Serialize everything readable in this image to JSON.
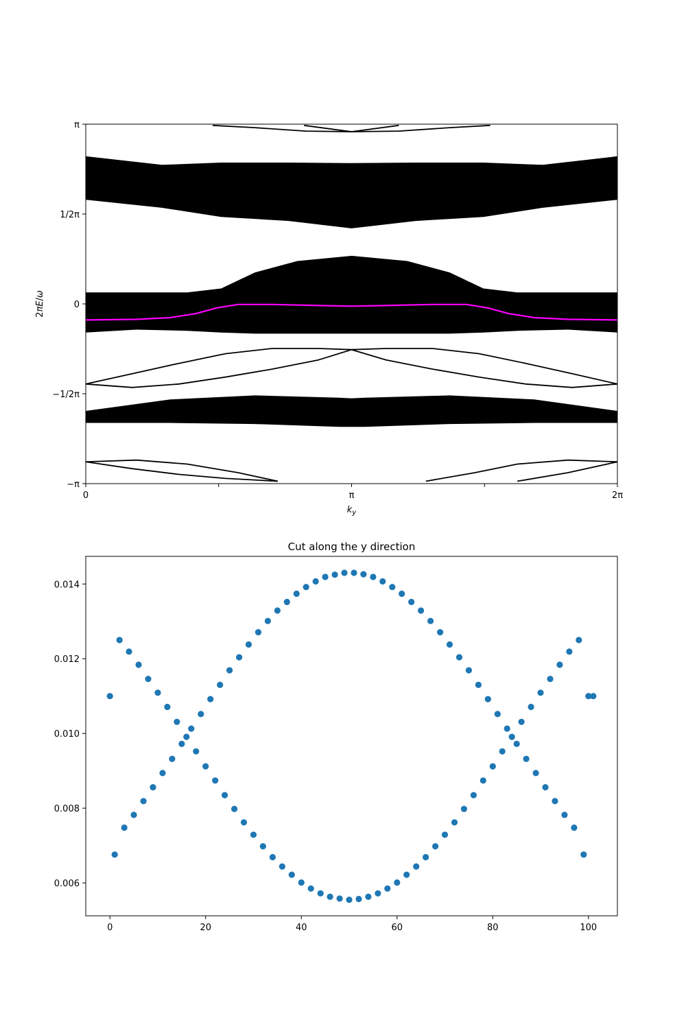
{
  "chart_data": [
    {
      "type": "line",
      "xlabel": "k_y",
      "ylabel": "2πE/ω",
      "xlim": [
        0,
        6.2832
      ],
      "ylim": [
        -3.1416,
        3.1416
      ],
      "x_ticks": [
        {
          "value": 0,
          "label": "0"
        },
        {
          "value": 1.5708,
          "label": ""
        },
        {
          "value": 3.1416,
          "label": "π"
        },
        {
          "value": 4.7124,
          "label": ""
        },
        {
          "value": 6.2832,
          "label": "2π"
        }
      ],
      "y_ticks": [
        {
          "value": -3.1416,
          "label": "−π"
        },
        {
          "value": -1.5708,
          "label": "−1/2π"
        },
        {
          "value": 0,
          "label": "0"
        },
        {
          "value": 1.5708,
          "label": "1/2π"
        },
        {
          "value": 3.1416,
          "label": "π"
        }
      ],
      "bands": [
        {
          "x": [
            0,
            0.9,
            1.6,
            2.4,
            3.1416,
            3.9,
            4.7,
            5.4,
            6.2832
          ],
          "lower": [
            1.82,
            1.68,
            1.52,
            1.45,
            1.32,
            1.45,
            1.52,
            1.68,
            1.82
          ],
          "upper": [
            2.58,
            2.43,
            2.47,
            2.47,
            2.46,
            2.47,
            2.47,
            2.43,
            2.58
          ]
        },
        {
          "x": [
            0,
            0.6,
            1.2,
            1.6,
            2.0,
            2.5,
            3.1416,
            3.8,
            4.3,
            4.7,
            5.1,
            5.7,
            6.2832
          ],
          "lower": [
            -0.5,
            -0.45,
            -0.47,
            -0.5,
            -0.52,
            -0.52,
            -0.52,
            -0.52,
            -0.52,
            -0.5,
            -0.47,
            -0.45,
            -0.5
          ],
          "upper": [
            0.2,
            0.2,
            0.2,
            0.27,
            0.55,
            0.75,
            0.84,
            0.75,
            0.55,
            0.27,
            0.2,
            0.2,
            0.2
          ]
        },
        {
          "x": [
            0,
            1.0,
            2.0,
            3.0,
            3.1416,
            3.3,
            4.3,
            5.3,
            6.2832
          ],
          "lower": [
            -2.08,
            -2.08,
            -2.1,
            -2.15,
            -2.15,
            -2.15,
            -2.1,
            -2.08,
            -2.08
          ],
          "upper": [
            -1.87,
            -1.67,
            -1.6,
            -1.64,
            -1.65,
            -1.64,
            -1.6,
            -1.67,
            -1.87
          ]
        }
      ],
      "series": [
        {
          "color": "#000000",
          "x": [
            0,
            0.55,
            1.1,
            1.65,
            2.2,
            2.75,
            3.1416,
            3.55,
            4.1,
            4.65,
            5.2,
            5.75,
            6.2832
          ],
          "y": [
            -1.4,
            -1.46,
            -1.4,
            -1.28,
            -1.14,
            -0.98,
            -0.8,
            -0.78,
            -0.78,
            -0.87,
            -1.04,
            -1.22,
            -1.4
          ]
        },
        {
          "color": "#000000",
          "x": [
            0,
            0.55,
            1.1,
            1.65,
            2.2,
            2.75,
            3.1416,
            3.55,
            4.1,
            4.65,
            5.2,
            5.75,
            6.2832
          ],
          "y": [
            -1.4,
            -1.22,
            -1.04,
            -0.87,
            -0.78,
            -0.78,
            -0.8,
            -0.98,
            -1.14,
            -1.28,
            -1.4,
            -1.46,
            -1.4
          ]
        },
        {
          "color": "#000000",
          "x": [
            1.5,
            2.0,
            2.6,
            3.1416,
            3.7
          ],
          "y": [
            3.12,
            3.08,
            3.02,
            3.01,
            3.12
          ]
        },
        {
          "color": "#000000",
          "x": [
            2.58,
            3.1416,
            3.7,
            4.3,
            4.78
          ],
          "y": [
            3.12,
            3.01,
            3.02,
            3.08,
            3.12
          ]
        },
        {
          "color": "#000000",
          "x": [
            0,
            0.6,
            1.2,
            1.8,
            2.27
          ],
          "y": [
            -2.76,
            -2.73,
            -2.8,
            -2.95,
            -3.1
          ]
        },
        {
          "color": "#000000",
          "x": [
            0,
            0.55,
            1.1,
            1.65,
            2.27
          ],
          "y": [
            -2.76,
            -2.88,
            -2.98,
            -3.05,
            -3.1
          ]
        },
        {
          "color": "#000000",
          "x": [
            4.02,
            4.6,
            5.1,
            5.7,
            6.2832
          ],
          "y": [
            -3.1,
            -2.95,
            -2.8,
            -2.73,
            -2.76
          ]
        },
        {
          "color": "#000000",
          "x": [
            5.1,
            5.7,
            6.2832
          ],
          "y": [
            -3.1,
            -2.95,
            -2.76
          ]
        },
        {
          "color": "#ff00ff",
          "x": [
            0,
            0.6,
            1.0,
            1.3,
            1.55,
            1.8,
            2.2,
            2.8,
            3.1416,
            3.5,
            4.1,
            4.5,
            4.75,
            5.0,
            5.3,
            5.7,
            6.2832
          ],
          "y": [
            -0.28,
            -0.27,
            -0.24,
            -0.17,
            -0.07,
            -0.01,
            -0.01,
            -0.03,
            -0.04,
            -0.03,
            -0.01,
            -0.01,
            -0.07,
            -0.17,
            -0.24,
            -0.27,
            -0.28
          ]
        }
      ]
    },
    {
      "type": "scatter",
      "title": "Cut along the y direction",
      "xlim": [
        -5.05,
        106.05
      ],
      "ylim": [
        0.00512,
        0.01474
      ],
      "x_ticks": [
        0,
        20,
        40,
        60,
        80,
        100
      ],
      "y_ticks": [
        0.006,
        0.008,
        0.01,
        0.012,
        0.014
      ],
      "y_tick_labels": [
        "0.006",
        "0.008",
        "0.010",
        "0.012",
        "0.014"
      ],
      "x_tick_labels": [
        "0",
        "20",
        "40",
        "60",
        "80",
        "100"
      ],
      "color": "#1f77b4",
      "x": [
        0,
        1,
        2,
        3,
        4,
        5,
        6,
        7,
        8,
        9,
        10,
        11,
        12,
        13,
        14,
        15,
        16,
        17,
        18,
        19,
        20,
        21,
        22,
        23,
        24,
        25,
        26,
        27,
        28,
        29,
        30,
        31,
        32,
        33,
        34,
        35,
        36,
        37,
        38,
        39,
        40,
        41,
        42,
        43,
        44,
        45,
        46,
        47,
        48,
        49,
        50,
        51,
        52,
        53,
        54,
        55,
        56,
        57,
        58,
        59,
        60,
        61,
        62,
        63,
        64,
        65,
        66,
        67,
        68,
        69,
        70,
        71,
        72,
        73,
        74,
        75,
        76,
        77,
        78,
        79,
        80,
        81,
        82,
        83,
        84,
        85,
        86,
        87,
        88,
        89,
        90,
        91,
        92,
        93,
        94,
        95,
        96,
        97,
        98,
        99,
        100,
        101
      ],
      "y": [
        0.011,
        0.00676,
        0.0125,
        0.00748,
        0.01219,
        0.00782,
        0.01184,
        0.00819,
        0.01146,
        0.00856,
        0.01109,
        0.00894,
        0.01071,
        0.00932,
        0.01031,
        0.00972,
        0.00991,
        0.01013,
        0.00952,
        0.01052,
        0.00912,
        0.01092,
        0.00874,
        0.0113,
        0.00835,
        0.01169,
        0.00798,
        0.01204,
        0.00762,
        0.01238,
        0.00729,
        0.01271,
        0.00698,
        0.01301,
        0.00669,
        0.01329,
        0.00644,
        0.01352,
        0.00622,
        0.01374,
        0.00601,
        0.01392,
        0.00585,
        0.01407,
        0.00572,
        0.01419,
        0.00563,
        0.01425,
        0.00558,
        0.0143,
        0.00555,
        0.0143,
        0.00557,
        0.01426,
        0.00563,
        0.01419,
        0.00572,
        0.01407,
        0.00585,
        0.01392,
        0.00601,
        0.01374,
        0.00622,
        0.01352,
        0.00644,
        0.01329,
        0.00669,
        0.01301,
        0.00698,
        0.01271,
        0.00729,
        0.01238,
        0.00762,
        0.01204,
        0.00798,
        0.01169,
        0.00835,
        0.0113,
        0.00874,
        0.01092,
        0.00912,
        0.01052,
        0.00952,
        0.01013,
        0.00991,
        0.00972,
        0.01031,
        0.00932,
        0.01071,
        0.00894,
        0.01109,
        0.00856,
        0.01146,
        0.00819,
        0.01184,
        0.00782,
        0.01219,
        0.00748,
        0.0125,
        0.00676,
        0.011,
        0.011
      ]
    }
  ]
}
